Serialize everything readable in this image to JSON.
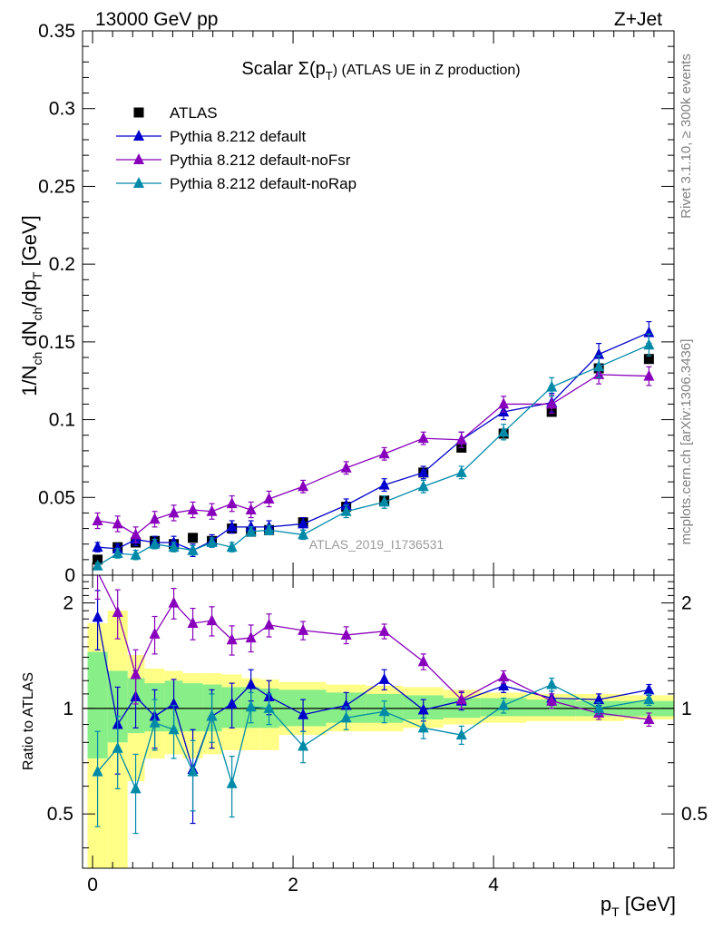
{
  "header": {
    "energy_label": "13000 GeV pp",
    "process_label": "Z+Jet",
    "rivet_label": "Rivet 3.1.10, ≥ 300k events",
    "mcplots_label": "mcplots.cern.ch [arXiv:1306.3436]",
    "analysis_label": "ATLAS_2019_I1736531"
  },
  "chart_data": [
    {
      "type": "line",
      "title": "Scalar Σ(p_T) (ATLAS UE in Z production)",
      "title_parts": {
        "main": "Scalar Σ(p",
        "sub": "T",
        "tail": ") (ATLAS UE in Z production)"
      },
      "ylabel_parts": [
        "1/N",
        "ch",
        " dN",
        "ch",
        "/dp",
        "T",
        " [GeV]"
      ],
      "ylim": [
        0,
        0.35
      ],
      "yticks": [
        0,
        0.05,
        0.1,
        0.15,
        0.2,
        0.25,
        0.3,
        0.35
      ],
      "ytick_labels": [
        "0",
        "0.05",
        "0.1",
        "0.15",
        "0.2",
        "0.25",
        "0.3",
        "0.35"
      ],
      "xlim": [
        -0.1,
        5.8
      ],
      "x": [
        0.05,
        0.25,
        0.43,
        0.62,
        0.81,
        1.0,
        1.19,
        1.39,
        1.58,
        1.76,
        2.1,
        2.53,
        2.91,
        3.3,
        3.68,
        4.1,
        4.58,
        5.05,
        5.55
      ],
      "series": [
        {
          "name": "ATLAS",
          "marker": "square",
          "color": "#000000",
          "values": [
            0.01,
            0.018,
            0.021,
            0.022,
            0.02,
            0.024,
            0.022,
            0.03,
            0.028,
            0.029,
            0.034,
            0.044,
            0.048,
            0.066,
            0.082,
            0.091,
            0.105,
            0.133,
            0.139
          ],
          "errors": [
            0.001,
            0.001,
            0.001,
            0.001,
            0.001,
            0.001,
            0.001,
            0.001,
            0.001,
            0.001,
            0.001,
            0.002,
            0.002,
            0.002,
            0.002,
            0.002,
            0.002,
            0.003,
            0.003
          ]
        },
        {
          "name": "Pythia 8.212 default",
          "marker": "triangle",
          "color": "#0000cc",
          "values": [
            0.018,
            0.017,
            0.023,
            0.021,
            0.021,
            0.016,
            0.022,
            0.031,
            0.031,
            0.031,
            0.033,
            0.045,
            0.058,
            0.066,
            0.087,
            0.105,
            0.111,
            0.142,
            0.156
          ],
          "errors": [
            0.003,
            0.003,
            0.004,
            0.004,
            0.004,
            0.004,
            0.004,
            0.004,
            0.004,
            0.004,
            0.004,
            0.004,
            0.004,
            0.004,
            0.005,
            0.005,
            0.006,
            0.007,
            0.007
          ]
        },
        {
          "name": "Pythia 8.212 default-noFsr",
          "marker": "triangle",
          "color": "#8800bb",
          "values": [
            0.035,
            0.033,
            0.026,
            0.036,
            0.04,
            0.042,
            0.041,
            0.046,
            0.042,
            0.049,
            0.057,
            0.069,
            0.078,
            0.088,
            0.087,
            0.11,
            0.11,
            0.129,
            0.128
          ],
          "errors": [
            0.005,
            0.005,
            0.005,
            0.005,
            0.005,
            0.005,
            0.005,
            0.005,
            0.005,
            0.005,
            0.004,
            0.004,
            0.004,
            0.004,
            0.005,
            0.005,
            0.006,
            0.006,
            0.006
          ]
        },
        {
          "name": "Pythia 8.212 default-noRap",
          "marker": "triangle",
          "color": "#008aa8",
          "values": [
            0.006,
            0.014,
            0.013,
            0.02,
            0.018,
            0.016,
            0.021,
            0.018,
            0.028,
            0.029,
            0.026,
            0.041,
            0.047,
            0.057,
            0.066,
            0.092,
            0.121,
            0.134,
            0.148
          ],
          "errors": [
            0.002,
            0.003,
            0.003,
            0.003,
            0.003,
            0.003,
            0.003,
            0.003,
            0.003,
            0.003,
            0.003,
            0.004,
            0.004,
            0.004,
            0.004,
            0.005,
            0.006,
            0.007,
            0.007
          ]
        }
      ]
    },
    {
      "type": "line",
      "title": "",
      "ylabel": "Ratio to ATLAS",
      "xlabel": "p_T [GeV]",
      "xlabel_parts": [
        "p",
        "T",
        " [GeV]"
      ],
      "ylim": [
        0.35,
        2.4
      ],
      "yticks": [
        0.5,
        1,
        2
      ],
      "ytick_labels": [
        "0.5",
        "1",
        "2"
      ],
      "xlim": [
        -0.1,
        5.8
      ],
      "xticks": [
        0,
        2,
        4
      ],
      "xtick_labels": [
        "0",
        "2",
        "4"
      ],
      "bin_edges": [
        -0.05,
        0.15,
        0.35,
        0.52,
        0.72,
        0.9,
        1.1,
        1.29,
        1.49,
        1.67,
        1.86,
        2.33,
        2.73,
        3.1,
        3.5,
        3.87,
        4.33,
        4.82,
        5.3,
        5.8
      ],
      "band_green": [
        [
          0.72,
          1.45
        ],
        [
          0.8,
          1.28
        ],
        [
          0.85,
          1.22
        ],
        [
          0.86,
          1.18
        ],
        [
          0.86,
          1.2
        ],
        [
          0.86,
          1.18
        ],
        [
          0.86,
          1.17
        ],
        [
          0.88,
          1.15
        ],
        [
          0.88,
          1.15
        ],
        [
          0.88,
          1.14
        ],
        [
          0.89,
          1.13
        ],
        [
          0.91,
          1.11
        ],
        [
          0.91,
          1.1
        ],
        [
          0.93,
          1.09
        ],
        [
          0.94,
          1.07
        ],
        [
          0.95,
          1.07
        ],
        [
          0.95,
          1.06
        ],
        [
          0.95,
          1.05
        ],
        [
          0.95,
          1.05
        ]
      ],
      "band_yellow": [
        [
          0.35,
          1.75
        ],
        [
          0.35,
          1.9
        ],
        [
          0.62,
          1.42
        ],
        [
          0.72,
          1.3
        ],
        [
          0.74,
          1.28
        ],
        [
          0.72,
          1.26
        ],
        [
          0.74,
          1.26
        ],
        [
          0.76,
          1.25
        ],
        [
          0.76,
          1.22
        ],
        [
          0.76,
          1.21
        ],
        [
          0.84,
          1.19
        ],
        [
          0.86,
          1.17
        ],
        [
          0.86,
          1.16
        ],
        [
          0.88,
          1.15
        ],
        [
          0.9,
          1.13
        ],
        [
          0.91,
          1.11
        ],
        [
          0.92,
          1.1
        ],
        [
          0.92,
          1.1
        ],
        [
          0.93,
          1.09
        ]
      ],
      "x": [
        0.05,
        0.25,
        0.43,
        0.62,
        0.81,
        1.0,
        1.19,
        1.39,
        1.58,
        1.76,
        2.1,
        2.53,
        2.91,
        3.3,
        3.68,
        4.1,
        4.58,
        5.05,
        5.55
      ],
      "series": [
        {
          "name": "Pythia 8.212 default",
          "marker": "triangle",
          "color": "#0000cc",
          "values": [
            1.82,
            0.9,
            1.08,
            0.95,
            1.03,
            0.67,
            0.95,
            1.03,
            1.17,
            1.08,
            0.96,
            1.02,
            1.21,
            0.99,
            1.05,
            1.16,
            1.07,
            1.06,
            1.13
          ],
          "errors": [
            0.35,
            0.25,
            0.2,
            0.18,
            0.18,
            0.2,
            0.18,
            0.15,
            0.12,
            0.12,
            0.1,
            0.09,
            0.08,
            0.07,
            0.06,
            0.05,
            0.05,
            0.04,
            0.04
          ]
        },
        {
          "name": "Pythia 8.212 default-noFsr",
          "marker": "triangle",
          "color": "#8800bb",
          "values": [
            2.45,
            1.88,
            1.25,
            1.63,
            2.0,
            1.75,
            1.78,
            1.57,
            1.59,
            1.73,
            1.67,
            1.62,
            1.66,
            1.36,
            1.06,
            1.23,
            1.05,
            0.97,
            0.93
          ],
          "errors": [
            0.4,
            0.3,
            0.22,
            0.2,
            0.2,
            0.18,
            0.17,
            0.15,
            0.14,
            0.13,
            0.1,
            0.09,
            0.08,
            0.07,
            0.06,
            0.05,
            0.05,
            0.04,
            0.04
          ]
        },
        {
          "name": "Pythia 8.212 default-noRap",
          "marker": "triangle",
          "color": "#008aa8",
          "values": [
            0.66,
            0.77,
            0.59,
            0.91,
            0.87,
            0.66,
            0.95,
            0.61,
            1.01,
            1.0,
            0.78,
            0.94,
            0.98,
            0.88,
            0.84,
            1.02,
            1.17,
            1.0,
            1.06
          ],
          "errors": [
            0.2,
            0.18,
            0.15,
            0.15,
            0.15,
            0.15,
            0.15,
            0.12,
            0.1,
            0.1,
            0.08,
            0.07,
            0.07,
            0.06,
            0.05,
            0.05,
            0.05,
            0.04,
            0.04
          ]
        }
      ]
    }
  ]
}
